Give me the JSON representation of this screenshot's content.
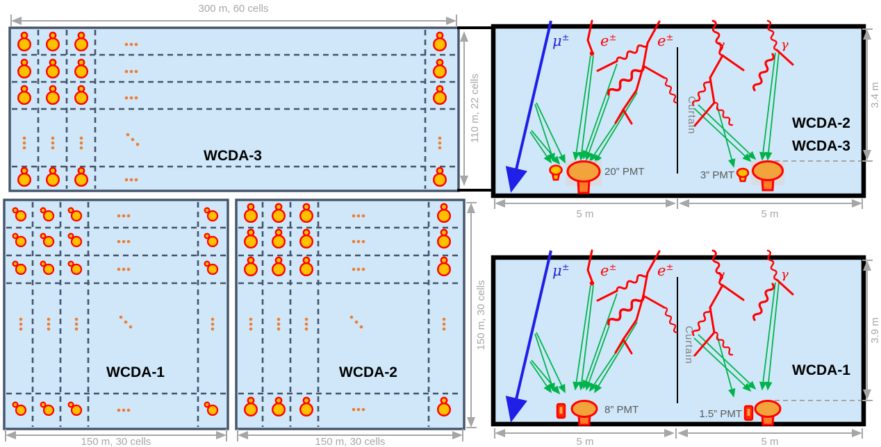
{
  "arrays": {
    "wcda3": {
      "name": "WCDA-3",
      "dim_top": "300 m, 60 cells",
      "dim_side": "110 m, 22 cells"
    },
    "wcda1": {
      "name": "WCDA-1",
      "dim_bottom": "150 m, 30 cells"
    },
    "wcda2": {
      "name": "WCDA-2",
      "dim_bottom": "150 m, 30 cells",
      "dim_side": "150 m, 30 cells"
    }
  },
  "tanks": {
    "top": {
      "muon": "μ",
      "muon_sup": "±",
      "electron1": "e",
      "electron1_sup": "±",
      "electron2": "e",
      "electron2_sup": "±",
      "gamma1": "γ",
      "gamma2": "γ",
      "curtain": "Curtain",
      "name_line1": "WCDA-2",
      "name_line2": "WCDA-3",
      "depth": "3.4 m",
      "pmt_large": "20” PMT",
      "pmt_small": "3” PMT",
      "dim_left": "5 m",
      "dim_right": "5 m"
    },
    "bottom": {
      "muon": "μ",
      "muon_sup": "±",
      "electron1": "e",
      "electron1_sup": "±",
      "electron2": "e",
      "electron2_sup": "±",
      "gamma1": "γ",
      "gamma2": "γ",
      "curtain": "Curtain",
      "name_line1": "WCDA-1",
      "depth": "3.9 m",
      "pmt_large": "8” PMT",
      "pmt_small": "1.5” PMT",
      "dim_left": "5 m",
      "dim_right": "5 m"
    }
  },
  "colors": {
    "water": "#CFE7F9",
    "array_border": "#44546A",
    "pmt_fill": "#FFC000",
    "pmt_stroke": "#FF0000",
    "ellipsis_dots": "#ED7D31",
    "muon_track": "#1F1FE8",
    "em_shower": "#FF0000",
    "cherenkov_light": "#00B44B",
    "dimension_gray": "#A6A6A6",
    "pmt_label_gray": "#595959"
  }
}
